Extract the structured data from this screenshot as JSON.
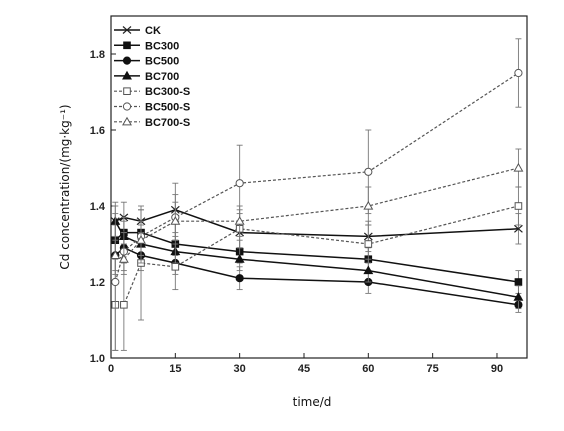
{
  "chart_data": {
    "type": "line",
    "xlabel": "time/d",
    "ylabel": "Cd concentration/(mg·kg⁻¹)",
    "xlim": [
      0,
      97
    ],
    "ylim": [
      1.0,
      1.9
    ],
    "x_ticks": [
      "0",
      "15",
      "30",
      "45",
      "60",
      "75",
      "90"
    ],
    "y_ticks": [
      "1.0",
      "1.2",
      "1.4",
      "1.6",
      "1.8"
    ],
    "grid": false,
    "legend_position": "top-left",
    "x": [
      1,
      3,
      7,
      15,
      30,
      60,
      95
    ],
    "series": [
      {
        "name": "CK",
        "marker": "x",
        "dashed": false,
        "values": [
          1.36,
          1.37,
          1.36,
          1.39,
          1.33,
          1.32,
          1.34
        ],
        "err": [
          0.05,
          0.04,
          0.03,
          0.07,
          0.05,
          0.04,
          0.04
        ]
      },
      {
        "name": "BC300",
        "marker": "square-filled",
        "dashed": false,
        "values": [
          1.31,
          1.33,
          1.33,
          1.3,
          1.28,
          1.26,
          1.2
        ],
        "err": [
          0.04,
          0.04,
          0.03,
          0.03,
          0.03,
          0.03,
          0.03
        ]
      },
      {
        "name": "BC500",
        "marker": "circle-filled",
        "dashed": false,
        "values": [
          1.27,
          1.29,
          1.27,
          1.25,
          1.21,
          1.2,
          1.14
        ],
        "err": [
          0.04,
          0.04,
          0.04,
          0.03,
          0.03,
          0.03,
          0.02
        ]
      },
      {
        "name": "BC700",
        "marker": "triangle-filled",
        "dashed": false,
        "values": [
          1.36,
          1.32,
          1.3,
          1.28,
          1.26,
          1.23,
          1.16
        ],
        "err": [
          0.04,
          0.04,
          0.03,
          0.03,
          0.03,
          0.03,
          0.03
        ]
      },
      {
        "name": "BC300-S",
        "marker": "square-open",
        "dashed": true,
        "values": [
          1.14,
          1.14,
          1.25,
          1.24,
          1.34,
          1.3,
          1.4
        ],
        "err": [
          0.12,
          0.12,
          0.15,
          0.06,
          0.05,
          0.05,
          0.05
        ]
      },
      {
        "name": "BC500-S",
        "marker": "circle-open",
        "dashed": true,
        "values": [
          1.2,
          1.28,
          1.32,
          1.37,
          1.46,
          1.49,
          1.75
        ],
        "err": [
          0.18,
          0.05,
          0.07,
          0.06,
          0.1,
          0.11,
          0.09
        ]
      },
      {
        "name": "BC700-S",
        "marker": "triangle-open",
        "dashed": true,
        "values": [
          1.27,
          1.26,
          1.31,
          1.36,
          1.36,
          1.4,
          1.5
        ],
        "err": [
          0.05,
          0.04,
          0.04,
          0.05,
          0.04,
          0.05,
          0.05
        ]
      }
    ]
  }
}
